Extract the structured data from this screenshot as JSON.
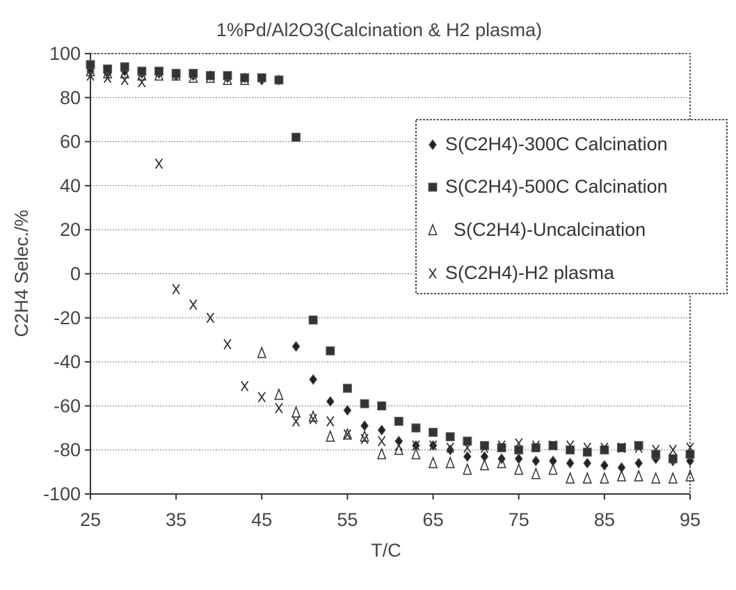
{
  "chart_data": {
    "type": "scatter",
    "title": "1%Pd/Al2O3(Calcination & H2 plasma)",
    "xlabel": "T/C",
    "ylabel": "C2H4 Selec./%",
    "xlim": [
      25,
      95
    ],
    "ylim": [
      -100,
      100
    ],
    "xticks": [
      "25",
      "35",
      "45",
      "55",
      "65",
      "75",
      "85",
      "95"
    ],
    "yticks": [
      "100",
      "80",
      "60",
      "40",
      "20",
      "0",
      "-20",
      "-40",
      "-60",
      "-80",
      "-100"
    ],
    "grid": "horizontal",
    "legend_position": "right",
    "series": [
      {
        "name": "S(C2H4)-300C Calcination",
        "marker": "diamond",
        "x": [
          25,
          27,
          29,
          31,
          33,
          35,
          37,
          39,
          41,
          43,
          45,
          47,
          49,
          51,
          53,
          55,
          57,
          59,
          61,
          63,
          65,
          67,
          69,
          71,
          73,
          75,
          77,
          79,
          81,
          83,
          85,
          87,
          89,
          91,
          93,
          95
        ],
        "y": [
          93,
          92,
          92,
          91,
          91,
          90,
          90,
          90,
          89,
          89,
          88,
          88,
          -33,
          -48,
          -58,
          -62,
          -69,
          -71,
          -76,
          -78,
          -78,
          -80,
          -83,
          -83,
          -84,
          -84,
          -85,
          -85,
          -86,
          -86,
          -87,
          -88,
          -86,
          -84,
          -85,
          -85
        ]
      },
      {
        "name": "S(C2H4)-500C Calcination",
        "marker": "square",
        "x": [
          25,
          27,
          29,
          31,
          33,
          35,
          37,
          39,
          41,
          43,
          45,
          47,
          49,
          51,
          53,
          55,
          57,
          59,
          61,
          63,
          65,
          67,
          69,
          71,
          73,
          75,
          77,
          79,
          81,
          83,
          85,
          87,
          89,
          91,
          93,
          95
        ],
        "y": [
          95,
          93,
          94,
          92,
          92,
          91,
          91,
          90,
          90,
          89,
          89,
          88,
          62,
          -21,
          -35,
          -52,
          -59,
          -60,
          -67,
          -70,
          -72,
          -74,
          -76,
          -78,
          -79,
          -80,
          -79,
          -78,
          -80,
          -81,
          -80,
          -79,
          -78,
          -82,
          -84,
          -82
        ]
      },
      {
        "name": "S(C2H4)-Uncalcination",
        "marker": "triangle",
        "x": [
          25,
          27,
          29,
          31,
          33,
          35,
          37,
          39,
          41,
          43,
          45,
          47,
          49,
          51,
          53,
          55,
          57,
          59,
          61,
          63,
          65,
          67,
          69,
          71,
          73,
          75,
          77,
          79,
          81,
          83,
          85,
          87,
          89,
          91,
          93,
          95
        ],
        "y": [
          92,
          91,
          91,
          90,
          90,
          90,
          89,
          89,
          88,
          88,
          -36,
          -55,
          -63,
          -65,
          -74,
          -73,
          -74,
          -82,
          -80,
          -82,
          -86,
          -86,
          -89,
          -87,
          -86,
          -89,
          -91,
          -89,
          -93,
          -93,
          -93,
          -92,
          -92,
          -93,
          -93,
          -92
        ]
      },
      {
        "name": "S(C2H4)-H2 plasma",
        "marker": "x",
        "x": [
          25,
          27,
          29,
          31,
          33,
          35,
          37,
          39,
          41,
          43,
          45,
          47,
          49,
          51,
          53,
          55,
          57,
          59,
          61,
          63,
          65,
          67,
          69,
          71,
          73,
          75,
          77,
          79,
          81,
          83,
          85,
          87,
          89,
          91,
          93,
          95
        ],
        "y": [
          90,
          89,
          88,
          87,
          50,
          -7,
          -14,
          -20,
          -32,
          -51,
          -56,
          -61,
          -67,
          -66,
          -67,
          -73,
          -75,
          -76,
          -78,
          -78,
          -78,
          -79,
          -79,
          -79,
          -78,
          -77,
          -78,
          -78,
          -78,
          -79,
          -79,
          -79,
          -79,
          -80,
          -80,
          -79
        ]
      }
    ]
  }
}
